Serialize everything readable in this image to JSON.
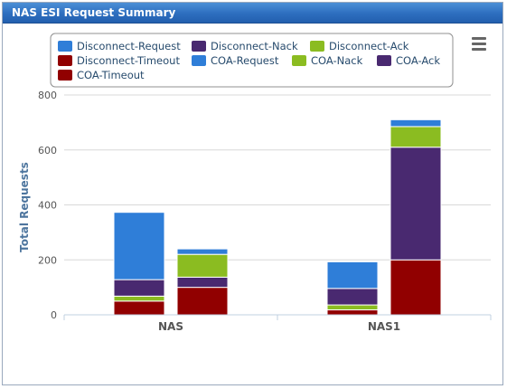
{
  "window": {
    "title": "NAS ESI Request Summary"
  },
  "toolbar": {
    "menu_icon": "hamburger-menu-icon"
  },
  "chart_data": {
    "type": "bar",
    "stacked": true,
    "title": "",
    "xlabel": "",
    "ylabel": "Total Requests",
    "ylim": [
      0,
      800
    ],
    "yticks": [
      0,
      200,
      400,
      600,
      800
    ],
    "grid": true,
    "legend_position": "top",
    "categories": [
      "NAS",
      "NAS1"
    ],
    "stacks": [
      {
        "name": "Disconnect",
        "series": [
          {
            "name": "Disconnect-Request",
            "color": "#2f7ed8",
            "values": [
              245,
              97
            ]
          },
          {
            "name": "Disconnect-Nack",
            "color": "#492970",
            "values": [
              60,
              60
            ]
          },
          {
            "name": "Disconnect-Ack",
            "color": "#8bbc21",
            "values": [
              18,
              18
            ]
          },
          {
            "name": "Disconnect-Timeout",
            "color": "#910000",
            "values": [
              50,
              18
            ]
          }
        ]
      },
      {
        "name": "COA",
        "series": [
          {
            "name": "COA-Request",
            "color": "#2f7ed8",
            "values": [
              20,
              25
            ]
          },
          {
            "name": "COA-Nack",
            "color": "#8bbc21",
            "values": [
              83,
              75
            ]
          },
          {
            "name": "COA-Ack",
            "color": "#492970",
            "values": [
              37,
              410
            ]
          },
          {
            "name": "COA-Timeout",
            "color": "#910000",
            "values": [
              100,
              200
            ]
          }
        ]
      }
    ]
  }
}
